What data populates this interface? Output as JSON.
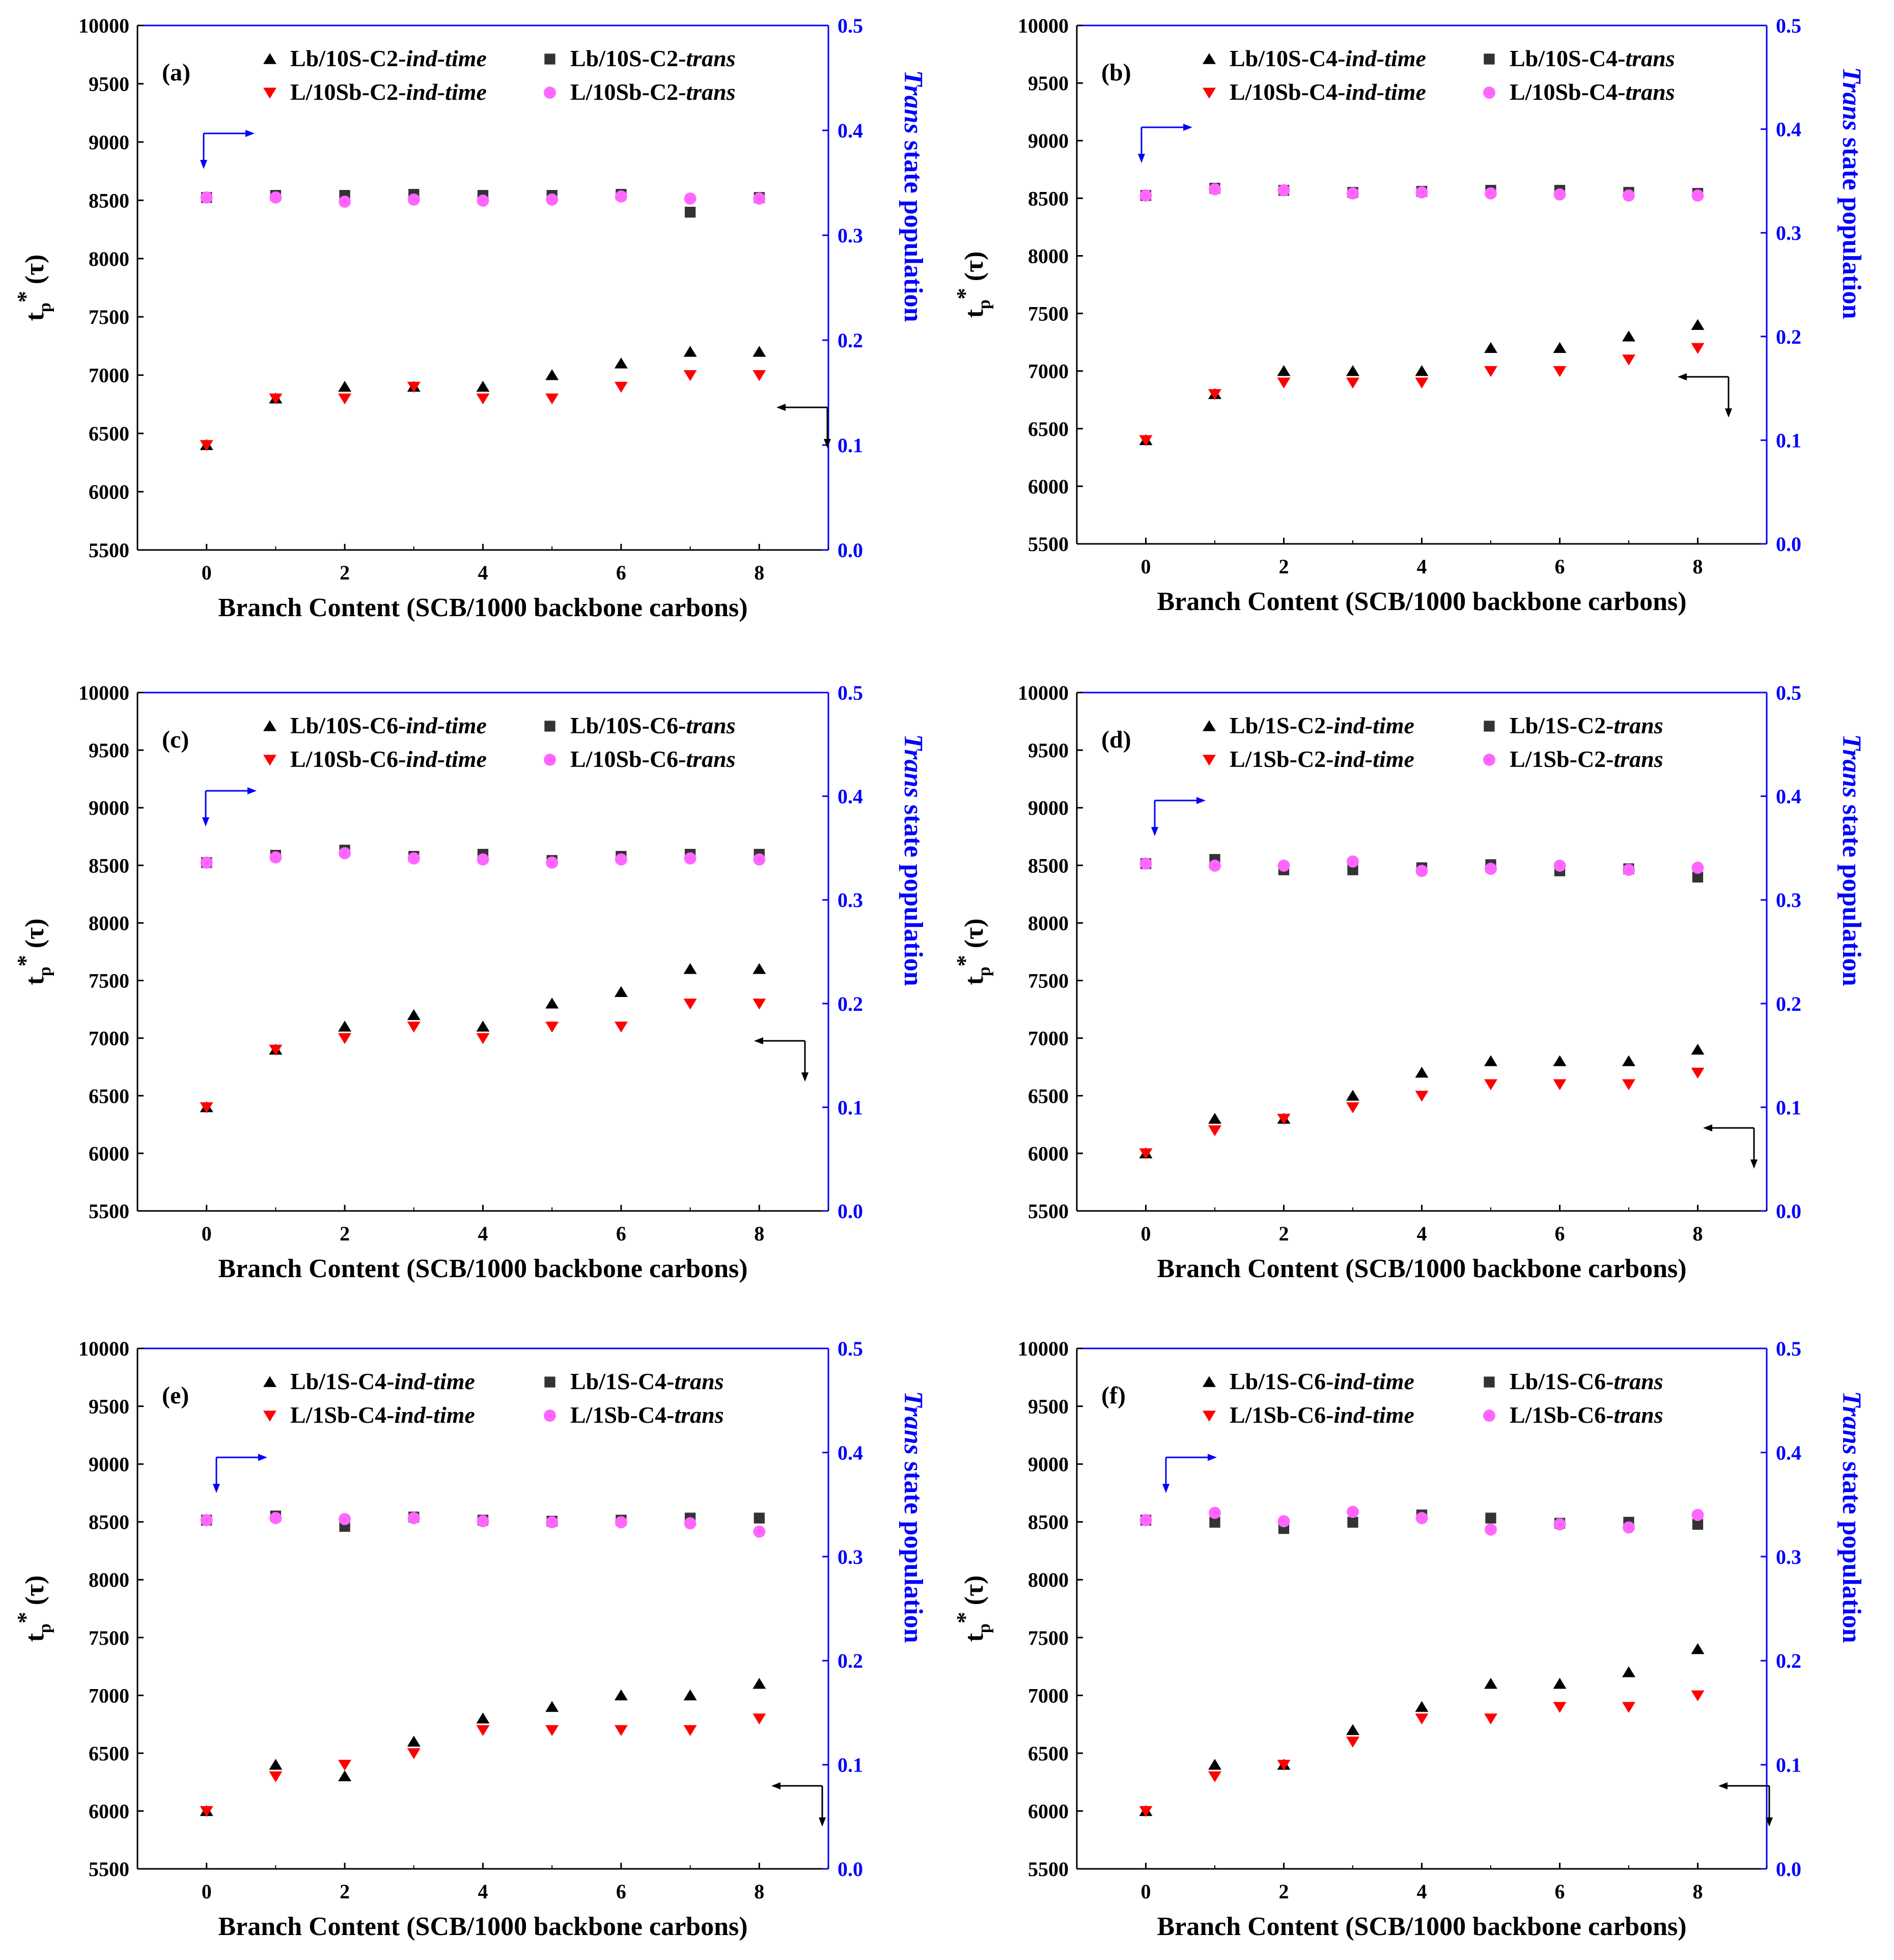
{
  "figure": {
    "colors": {
      "left_axis": "#000000",
      "right_axis": "#0000ff",
      "lb_ind_time": "#000000",
      "l_ind_time": "#ff0000",
      "lb_trans": "#333333",
      "l_trans": "#ff66ff",
      "arrow_left_axis": "#000000",
      "arrow_right_axis": "#0000ff"
    }
  },
  "chart_data": [
    {
      "type": "scatter",
      "panel_label": "(a)",
      "xlabel": "Branch Content (SCB/1000 backbone carbons)",
      "ylabel_left": {
        "base": "t",
        "sub": "p",
        "sup": "*",
        "suffix": " (τ)"
      },
      "ylabel_right": {
        "italic": "Trans",
        "rest": " state population"
      },
      "xlim": [
        -1,
        9
      ],
      "xticks": [
        "0",
        "2",
        "4",
        "6",
        "8"
      ],
      "ylim_left": [
        5500,
        10000
      ],
      "yticks_left": [
        "5500",
        "6000",
        "6500",
        "7000",
        "7500",
        "8000",
        "8500",
        "9000",
        "9500",
        "10000"
      ],
      "ylim_right": [
        0.0,
        0.5
      ],
      "yticks_right": [
        "0.0",
        "0.1",
        "0.2",
        "0.3",
        "0.4",
        "0.5"
      ],
      "x": [
        0,
        1,
        2,
        3,
        4,
        5,
        6,
        7,
        8
      ],
      "series": [
        {
          "name": "Lb/10S-C2-",
          "name_italic": "ind-time",
          "marker": "triangle-up",
          "axis": "left",
          "values": [
            6400,
            6800,
            6900,
            6900,
            6900,
            7000,
            7100,
            7200,
            7200
          ]
        },
        {
          "name": "L/10Sb-C2-",
          "name_italic": "ind-time",
          "marker": "triangle-down",
          "axis": "left",
          "values": [
            6400,
            6800,
            6800,
            6900,
            6800,
            6800,
            6900,
            7000,
            7000
          ]
        },
        {
          "name": "Lb/10S-C2-",
          "name_italic": "trans",
          "marker": "square",
          "axis": "right",
          "values": [
            0.336,
            0.338,
            0.338,
            0.339,
            0.338,
            0.338,
            0.339,
            0.322,
            0.336
          ]
        },
        {
          "name": "L/10Sb-C2-",
          "name_italic": "trans",
          "marker": "circle",
          "axis": "right",
          "values": [
            0.336,
            0.336,
            0.332,
            0.334,
            0.333,
            0.334,
            0.337,
            0.335,
            0.335
          ]
        }
      ]
    },
    {
      "type": "scatter",
      "panel_label": "(b)",
      "xlabel": "Branch Content (SCB/1000 backbone carbons)",
      "ylabel_left": {
        "base": "t",
        "sub": "p",
        "sup": "*",
        "suffix": " (τ)"
      },
      "ylabel_right": {
        "italic": "Trans",
        "rest": " state population"
      },
      "xlim": [
        -1,
        9
      ],
      "xticks": [
        "0",
        "2",
        "4",
        "6",
        "8"
      ],
      "ylim_left": [
        5500,
        10000
      ],
      "yticks_left": [
        "5500",
        "6000",
        "6500",
        "7000",
        "7500",
        "8000",
        "8500",
        "9000",
        "9500",
        "10000"
      ],
      "ylim_right": [
        0.0,
        0.5
      ],
      "yticks_right": [
        "0.0",
        "0.1",
        "0.2",
        "0.3",
        "0.4",
        "0.5"
      ],
      "x": [
        0,
        1,
        2,
        3,
        4,
        5,
        6,
        7,
        8
      ],
      "series": [
        {
          "name": "Lb/10S-C4-",
          "name_italic": "ind-time",
          "marker": "triangle-up",
          "axis": "left",
          "values": [
            6400,
            6800,
            7000,
            7000,
            7000,
            7200,
            7200,
            7300,
            7400
          ]
        },
        {
          "name": "L/10Sb-C4-",
          "name_italic": "ind-time",
          "marker": "triangle-down",
          "axis": "left",
          "values": [
            6400,
            6800,
            6900,
            6900,
            6900,
            7000,
            7000,
            7100,
            7200
          ]
        },
        {
          "name": "Lb/10S-C4-",
          "name_italic": "trans",
          "marker": "square",
          "axis": "right",
          "values": [
            0.336,
            0.343,
            0.341,
            0.339,
            0.34,
            0.341,
            0.341,
            0.339,
            0.338
          ]
        },
        {
          "name": "L/10Sb-C4-",
          "name_italic": "trans",
          "marker": "circle",
          "axis": "right",
          "values": [
            0.336,
            0.342,
            0.341,
            0.338,
            0.339,
            0.338,
            0.337,
            0.336,
            0.336
          ]
        }
      ]
    },
    {
      "type": "scatter",
      "panel_label": "(c)",
      "xlabel": "Branch Content (SCB/1000 backbone carbons)",
      "ylabel_left": {
        "base": "t",
        "sub": "p",
        "sup": "*",
        "suffix": " (τ)"
      },
      "ylabel_right": {
        "italic": "Trans",
        "rest": " state population"
      },
      "xlim": [
        -1,
        9
      ],
      "xticks": [
        "0",
        "2",
        "4",
        "6",
        "8"
      ],
      "ylim_left": [
        5500,
        10000
      ],
      "yticks_left": [
        "5500",
        "6000",
        "6500",
        "7000",
        "7500",
        "8000",
        "8500",
        "9000",
        "9500",
        "10000"
      ],
      "ylim_right": [
        0.0,
        0.5
      ],
      "yticks_right": [
        "0.0",
        "0.1",
        "0.2",
        "0.3",
        "0.4",
        "0.5"
      ],
      "x": [
        0,
        1,
        2,
        3,
        4,
        5,
        6,
        7,
        8
      ],
      "series": [
        {
          "name": "Lb/10S-C6-",
          "name_italic": "ind-time",
          "marker": "triangle-up",
          "axis": "left",
          "values": [
            6400,
            6900,
            7100,
            7200,
            7100,
            7300,
            7400,
            7600,
            7600
          ]
        },
        {
          "name": "L/10Sb-C6-",
          "name_italic": "ind-time",
          "marker": "triangle-down",
          "axis": "left",
          "values": [
            6400,
            6900,
            7000,
            7100,
            7000,
            7100,
            7100,
            7300,
            7300
          ]
        },
        {
          "name": "Lb/10S-C6-",
          "name_italic": "trans",
          "marker": "square",
          "axis": "right",
          "values": [
            0.336,
            0.343,
            0.348,
            0.342,
            0.344,
            0.338,
            0.342,
            0.344,
            0.344
          ]
        },
        {
          "name": "L/10Sb-C6-",
          "name_italic": "trans",
          "marker": "circle",
          "axis": "right",
          "values": [
            0.336,
            0.341,
            0.345,
            0.34,
            0.339,
            0.336,
            0.339,
            0.34,
            0.339
          ]
        }
      ]
    },
    {
      "type": "scatter",
      "panel_label": "(d)",
      "xlabel": "Branch Content (SCB/1000 backbone carbons)",
      "ylabel_left": {
        "base": "t",
        "sub": "p",
        "sup": "*",
        "suffix": " (τ)"
      },
      "ylabel_right": {
        "italic": "Trans",
        "rest": " state population"
      },
      "xlim": [
        -1,
        9
      ],
      "xticks": [
        "0",
        "2",
        "4",
        "6",
        "8"
      ],
      "ylim_left": [
        5500,
        10000
      ],
      "yticks_left": [
        "5500",
        "6000",
        "6500",
        "7000",
        "7500",
        "8000",
        "8500",
        "9000",
        "9500",
        "10000"
      ],
      "ylim_right": [
        0.0,
        0.5
      ],
      "yticks_right": [
        "0.0",
        "0.1",
        "0.2",
        "0.3",
        "0.4",
        "0.5"
      ],
      "x": [
        0,
        1,
        2,
        3,
        4,
        5,
        6,
        7,
        8
      ],
      "series": [
        {
          "name": "Lb/1S-C2-",
          "name_italic": "ind-time",
          "marker": "triangle-up",
          "axis": "left",
          "values": [
            6000,
            6300,
            6300,
            6500,
            6700,
            6800,
            6800,
            6800,
            6900
          ]
        },
        {
          "name": "L/1Sb-C2-",
          "name_italic": "ind-time",
          "marker": "triangle-down",
          "axis": "left",
          "values": [
            6000,
            6200,
            6300,
            6400,
            6500,
            6600,
            6600,
            6600,
            6700
          ]
        },
        {
          "name": "Lb/1S-C2-",
          "name_italic": "trans",
          "marker": "square",
          "axis": "right",
          "values": [
            0.335,
            0.339,
            0.329,
            0.329,
            0.331,
            0.334,
            0.328,
            0.33,
            0.322
          ]
        },
        {
          "name": "L/1Sb-C2-",
          "name_italic": "trans",
          "marker": "circle",
          "axis": "right",
          "values": [
            0.335,
            0.333,
            0.333,
            0.337,
            0.328,
            0.33,
            0.333,
            0.329,
            0.331
          ]
        }
      ]
    },
    {
      "type": "scatter",
      "panel_label": "(e)",
      "xlabel": "Branch Content (SCB/1000 backbone carbons)",
      "ylabel_left": {
        "base": "t",
        "sub": "p",
        "sup": "*",
        "suffix": " (τ)"
      },
      "ylabel_right": {
        "italic": "Trans",
        "rest": " state population"
      },
      "xlim": [
        -1,
        9
      ],
      "xticks": [
        "0",
        "2",
        "4",
        "6",
        "8"
      ],
      "ylim_left": [
        5500,
        10000
      ],
      "yticks_left": [
        "5500",
        "6000",
        "6500",
        "7000",
        "7500",
        "8000",
        "8500",
        "9000",
        "9500",
        "10000"
      ],
      "ylim_right": [
        0.0,
        0.5
      ],
      "yticks_right": [
        "0.0",
        "0.1",
        "0.2",
        "0.3",
        "0.4",
        "0.5"
      ],
      "x": [
        0,
        1,
        2,
        3,
        4,
        5,
        6,
        7,
        8
      ],
      "series": [
        {
          "name": "Lb/1S-C4-",
          "name_italic": "ind-time",
          "marker": "triangle-up",
          "axis": "left",
          "values": [
            6000,
            6400,
            6300,
            6600,
            6800,
            6900,
            7000,
            7000,
            7100
          ]
        },
        {
          "name": "L/1Sb-C4-",
          "name_italic": "ind-time",
          "marker": "triangle-down",
          "axis": "left",
          "values": [
            6000,
            6300,
            6400,
            6500,
            6700,
            6700,
            6700,
            6700,
            6800
          ]
        },
        {
          "name": "Lb/1S-C4-",
          "name_italic": "trans",
          "marker": "square",
          "axis": "right",
          "values": [
            0.335,
            0.339,
            0.329,
            0.338,
            0.335,
            0.334,
            0.335,
            0.337,
            0.337
          ]
        },
        {
          "name": "L/1Sb-C4-",
          "name_italic": "trans",
          "marker": "circle",
          "axis": "right",
          "values": [
            0.335,
            0.337,
            0.336,
            0.337,
            0.334,
            0.333,
            0.333,
            0.332,
            0.324
          ]
        }
      ]
    },
    {
      "type": "scatter",
      "panel_label": "(f)",
      "xlabel": "Branch Content (SCB/1000 backbone carbons)",
      "ylabel_left": {
        "base": "t",
        "sub": "p",
        "sup": "*",
        "suffix": " (τ)"
      },
      "ylabel_right": {
        "italic": "Trans",
        "rest": " state population"
      },
      "xlim": [
        -1,
        9
      ],
      "xticks": [
        "0",
        "2",
        "4",
        "6",
        "8"
      ],
      "ylim_left": [
        5500,
        10000
      ],
      "yticks_left": [
        "5500",
        "6000",
        "6500",
        "7000",
        "7500",
        "8000",
        "8500",
        "9000",
        "9500",
        "10000"
      ],
      "ylim_right": [
        0.0,
        0.5
      ],
      "yticks_right": [
        "0.0",
        "0.1",
        "0.2",
        "0.3",
        "0.4",
        "0.5"
      ],
      "x": [
        0,
        1,
        2,
        3,
        4,
        5,
        6,
        7,
        8
      ],
      "series": [
        {
          "name": "Lb/1S-C6-",
          "name_italic": "ind-time",
          "marker": "triangle-up",
          "axis": "left",
          "values": [
            6000,
            6400,
            6400,
            6700,
            6900,
            7100,
            7100,
            7200,
            7400
          ]
        },
        {
          "name": "L/1Sb-C6-",
          "name_italic": "ind-time",
          "marker": "triangle-down",
          "axis": "left",
          "values": [
            6000,
            6300,
            6400,
            6600,
            6800,
            6800,
            6900,
            6900,
            7000
          ]
        },
        {
          "name": "Lb/1S-C6-",
          "name_italic": "trans",
          "marker": "square",
          "axis": "right",
          "values": [
            0.335,
            0.333,
            0.327,
            0.333,
            0.34,
            0.337,
            0.332,
            0.333,
            0.331
          ]
        },
        {
          "name": "L/1Sb-C6-",
          "name_italic": "trans",
          "marker": "circle",
          "axis": "right",
          "values": [
            0.335,
            0.342,
            0.334,
            0.343,
            0.337,
            0.326,
            0.331,
            0.328,
            0.34
          ]
        }
      ]
    }
  ]
}
